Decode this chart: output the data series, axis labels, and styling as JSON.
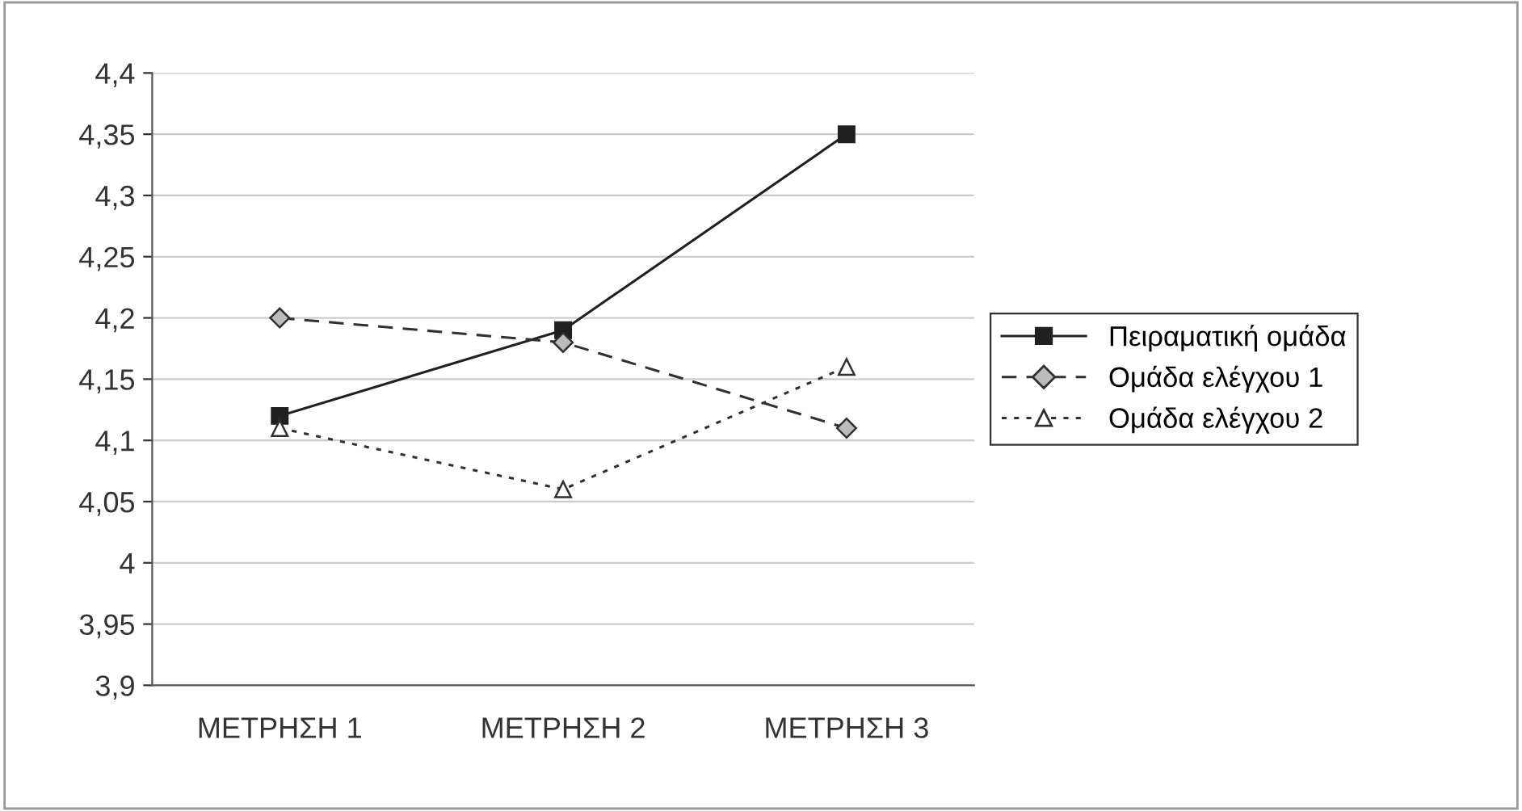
{
  "chart_data": {
    "type": "line",
    "categories": [
      "ΜΕΤΡΗΣΗ 1",
      "ΜΕΤΡΗΣΗ 2",
      "ΜΕΤΡΗΣΗ 3"
    ],
    "series": [
      {
        "name": "Πειραματική ομάδα",
        "color": "#202020",
        "values": [
          4.12,
          4.19,
          4.35
        ],
        "marker": "square",
        "line_style": "solid"
      },
      {
        "name": "Ομάδα ελέγχου 1",
        "color": "#303030",
        "values": [
          4.2,
          4.18,
          4.11
        ],
        "marker": "diamond",
        "line_style": "dashed"
      },
      {
        "name": "Ομάδα ελέγχου 2",
        "color": "#303030",
        "values": [
          4.11,
          4.06,
          4.16
        ],
        "marker": "triangle",
        "line_style": "dotted"
      }
    ],
    "ylim": [
      3.9,
      4.4
    ],
    "yticks": [
      {
        "value": 3.9,
        "label": "3,9"
      },
      {
        "value": 3.95,
        "label": "3,95"
      },
      4,
      {
        "value": 4.05,
        "label": "4,05"
      },
      {
        "value": 4.1,
        "label": "4,1"
      },
      {
        "value": 4.15,
        "label": "4,15"
      },
      {
        "value": 4.2,
        "label": "4,2"
      },
      {
        "value": 4.25,
        "label": "4,25"
      },
      {
        "value": 4.3,
        "label": "4,3"
      },
      {
        "value": 4.35,
        "label": "4,35"
      },
      {
        "value": 4.4,
        "label": "4,4"
      }
    ],
    "grid": "y",
    "legend": "right"
  }
}
